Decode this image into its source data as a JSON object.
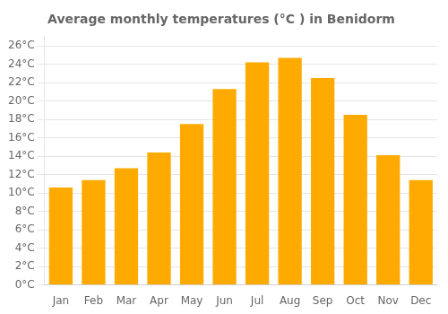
{
  "chart_data": {
    "type": "bar",
    "title": "Average monthly temperatures (°C ) in Benidorm",
    "categories": [
      "Jan",
      "Feb",
      "Mar",
      "Apr",
      "May",
      "Jun",
      "Jul",
      "Aug",
      "Sep",
      "Oct",
      "Nov",
      "Dec"
    ],
    "values": [
      10.6,
      11.4,
      12.7,
      14.4,
      17.5,
      21.3,
      24.2,
      24.7,
      22.5,
      18.5,
      14.1,
      11.4
    ],
    "color": "#FFAA00",
    "ylim": [
      0,
      27
    ],
    "yticks": [
      {
        "value": 0,
        "label": "0°C"
      },
      {
        "value": 2,
        "label": "2°C"
      },
      {
        "value": 4,
        "label": "4°C"
      },
      {
        "value": 6,
        "label": "6°C"
      },
      {
        "value": 8,
        "label": "8°C"
      },
      {
        "value": 10,
        "label": "10°C"
      },
      {
        "value": 12,
        "label": "12°C"
      },
      {
        "value": 14,
        "label": "14°C"
      },
      {
        "value": 16,
        "label": "16°C"
      },
      {
        "value": 18,
        "label": "18°C"
      },
      {
        "value": 20,
        "label": "20°C"
      },
      {
        "value": 22,
        "label": "22°C"
      },
      {
        "value": 24,
        "label": "24°C"
      },
      {
        "value": 26,
        "label": "26°C"
      }
    ],
    "grid": true
  }
}
